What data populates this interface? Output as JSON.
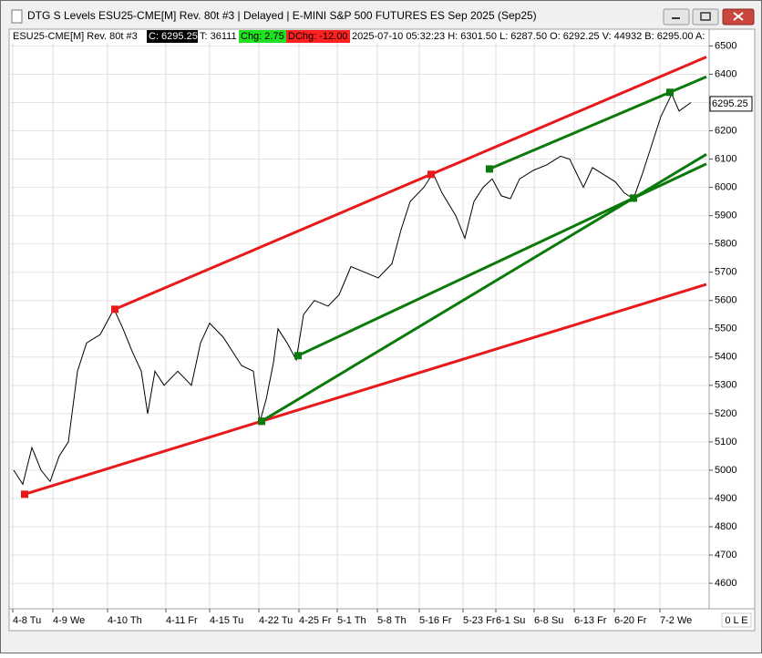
{
  "window": {
    "title": "DTG S Levels ESU25-CME[M]  Rev. 80t #3 | Delayed | E-MINI S&P 500 FUTURES ES Sep 2025 (Sep25)",
    "status": "0 L E"
  },
  "info_bar": {
    "symbol": "ESU25-CME[M]  Rev. 80t #3",
    "close": "C: 6295.25",
    "ticks": "T: 36111",
    "change": "Chg: 2.75",
    "daily_change": "DChg: -12.00",
    "details": "2025-07-10 05:32:23 H: 6301.50 L: 6287.50 O: 6292.25 V: 44932 B: 6295.00 A:"
  },
  "chart_data": {
    "type": "line",
    "xlim": [
      0,
      381.5
    ],
    "ylim": [
      4510,
      6540
    ],
    "xticks": [
      {
        "value": 1,
        "label": "4-8 Tu"
      },
      {
        "value": 23,
        "label": "4-9 We"
      },
      {
        "value": 53,
        "label": "4-10 Th"
      },
      {
        "value": 85,
        "label": "4-11 Fr"
      },
      {
        "value": 109,
        "label": "4-15 Tu"
      },
      {
        "value": 136,
        "label": "4-22 Tu"
      },
      {
        "value": 158,
        "label": "4-25 Fr"
      },
      {
        "value": 179,
        "label": "5-1 Th"
      },
      {
        "value": 201,
        "label": "5-8 Th"
      },
      {
        "value": 224,
        "label": "5-16 Fr"
      },
      {
        "value": 248,
        "label": "5-23 Fr"
      },
      {
        "value": 266,
        "label": "6-1 Su"
      },
      {
        "value": 287,
        "label": "6-8 Su"
      },
      {
        "value": 309,
        "label": "6-13 Fr"
      },
      {
        "value": 331,
        "label": "6-20 Fr"
      },
      {
        "value": 356,
        "label": "7-2 We"
      }
    ],
    "yticks": [
      4600,
      4700,
      4800,
      4900,
      5000,
      5100,
      5200,
      5300,
      5400,
      5500,
      5600,
      5700,
      5800,
      5900,
      6000,
      6100,
      6200,
      6300,
      6400,
      6500
    ],
    "grid": true,
    "last_price": 6295.25,
    "series": [
      {
        "color": "#000000",
        "x": [
          1.5,
          6.5,
          11.5,
          16.5,
          21.5,
          26.5,
          31.5,
          36.5,
          41.5,
          49,
          56.5,
          61.5,
          66.5,
          71.5,
          75,
          79,
          84,
          91.5,
          99,
          104,
          109,
          116.5,
          121.5,
          126.5,
          133,
          136.5,
          140,
          144,
          146.5,
          151.5,
          156.5,
          160.5,
          166.5,
          174,
          180,
          186.5,
          194,
          201.5,
          209,
          214,
          219,
          226.5,
          231.5,
          236.5,
          244,
          249,
          254,
          259,
          264,
          269,
          274,
          279,
          286.5,
          294,
          301.5,
          306.5,
          314,
          319,
          324,
          331.5,
          336.5,
          341.5,
          346.5,
          351.5,
          356.5,
          362.5,
          366.5,
          373
        ],
        "values": [
          5000,
          4950,
          5080,
          5000,
          4960,
          5050,
          5100,
          5350,
          5450,
          5480,
          5570,
          5500,
          5420,
          5350,
          5200,
          5350,
          5300,
          5350,
          5300,
          5450,
          5520,
          5470,
          5420,
          5370,
          5350,
          5170,
          5250,
          5380,
          5500,
          5450,
          5390,
          5550,
          5600,
          5580,
          5620,
          5720,
          5700,
          5680,
          5730,
          5850,
          5950,
          6000,
          6050,
          5980,
          5900,
          5820,
          5950,
          6000,
          6030,
          5970,
          5960,
          6030,
          6060,
          6080,
          6110,
          6100,
          6000,
          6070,
          6050,
          6020,
          5980,
          5960,
          6050,
          6150,
          6250,
          6330,
          6270,
          6300
        ]
      },
      {
        "color": "#e8191b",
        "x": [
          7.5,
          137.5,
          381.5
        ],
        "values": [
          4915,
          5173,
          5657
        ]
      },
      {
        "color": "#e8191b",
        "x": [
          57,
          230.5,
          381.5
        ],
        "values": [
          5569,
          6046,
          6461
        ]
      },
      {
        "color": "#0b7a0b",
        "x": [
          137.5,
          341.5,
          381.5
        ],
        "values": [
          5173,
          5962,
          6117
        ]
      },
      {
        "color": "#0b7a0b",
        "x": [
          157.5,
          341.5,
          381.5
        ],
        "values": [
          5405,
          5962,
          6083
        ]
      },
      {
        "color": "#0b7a0b",
        "x": [
          262.5,
          361.5,
          381.5
        ],
        "values": [
          6065,
          6336,
          6391
        ]
      }
    ]
  }
}
